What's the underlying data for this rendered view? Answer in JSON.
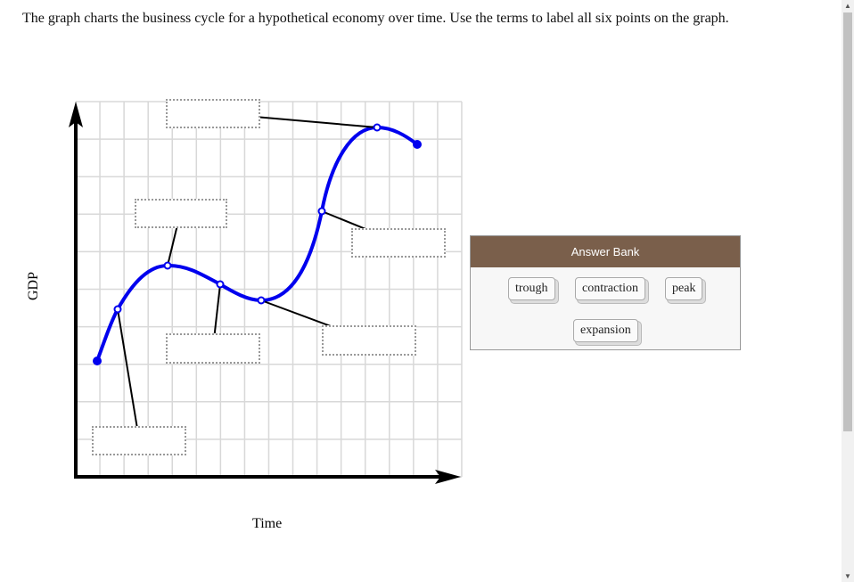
{
  "instruction": "The graph charts the business cycle for a hypothetical economy over time. Use the terms to label all six points on the graph.",
  "graph": {
    "y_axis_label": "GDP",
    "x_axis_label": "Time",
    "curve_color": "#0000ee",
    "drop_zones": 6
  },
  "answer_bank": {
    "title": "Answer Bank",
    "header_color": "#7a5f4b",
    "terms": [
      "trough",
      "contraction",
      "peak",
      "expansion"
    ]
  },
  "scrollbar": {
    "up_icon": "triangle-up",
    "down_icon": "triangle-down"
  }
}
